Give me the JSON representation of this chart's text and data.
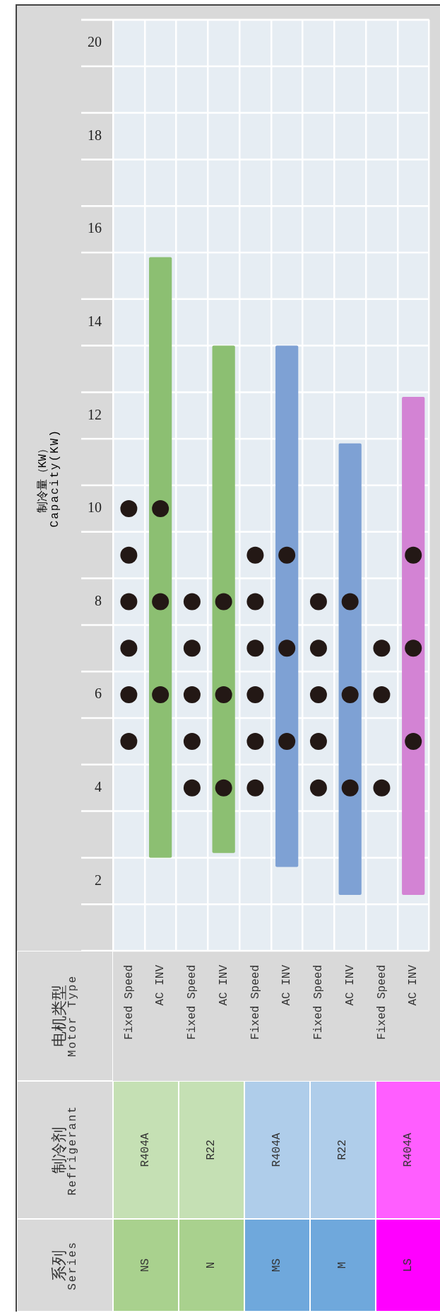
{
  "chart_data": {
    "type": "bar",
    "ylabel": "制冷量（KW）\nCapacity(KW)",
    "categories": [
      "Fixed Speed",
      "AC INV",
      "Fixed Speed",
      "AC INV",
      "Fixed Speed",
      "AC INV",
      "Fixed Speed",
      "AC INV",
      "Fixed Speed",
      "AC INV"
    ],
    "series": [
      {
        "base": [
          null,
          2.5,
          null,
          2.6,
          null,
          2.3,
          null,
          1.7,
          null,
          1.7
        ],
        "colors": [
          "#8cbf72",
          "#8cbf72",
          "#8cbf72",
          "#8cbf72",
          "#7ea1d4",
          "#7ea1d4",
          "#7ea1d4",
          "#7ea1d4",
          "#d383d4",
          "#d383d4"
        ],
        "values": [
          null,
          12.9,
          null,
          10.9,
          null,
          11.2,
          null,
          9.7,
          null,
          10.7
        ]
      },
      {
        "type": "scatter",
        "color": "#231815",
        "values": [
          10,
          10,
          8,
          8,
          9,
          9,
          8,
          8,
          7,
          9
        ]
      },
      {
        "type": "scatter",
        "color": "#231815",
        "values": [
          9,
          8,
          7,
          6,
          8,
          7,
          7,
          6,
          6,
          7
        ]
      },
      {
        "type": "scatter",
        "color": "#231815",
        "values": [
          8,
          6,
          6,
          4,
          7,
          5,
          6,
          4,
          4,
          5
        ]
      },
      {
        "type": "scatter",
        "color": "#231815",
        "values": [
          7,
          null,
          5,
          null,
          6,
          null,
          5,
          null,
          null,
          null
        ]
      },
      {
        "type": "scatter",
        "color": "#231815",
        "values": [
          6,
          null,
          4,
          null,
          5,
          null,
          4,
          null,
          null,
          null
        ]
      },
      {
        "type": "scatter",
        "color": "#231815",
        "values": [
          5,
          null,
          null,
          null,
          4,
          null,
          null,
          null,
          null,
          null
        ]
      }
    ],
    "ylim": [
      0.5,
      20.5
    ],
    "yticks": [
      2,
      4,
      6,
      8,
      10,
      12,
      14,
      16,
      18,
      20
    ],
    "grid": true,
    "marker": "circle",
    "annotations": [
      "电机类型\nMotor Type",
      "制冷剂\nRefrigerant",
      "系列\nSeries",
      "R404A",
      "R22",
      "R404A",
      "R22",
      "R404A",
      "NS",
      "N",
      "MS",
      "M",
      "LS"
    ]
  }
}
